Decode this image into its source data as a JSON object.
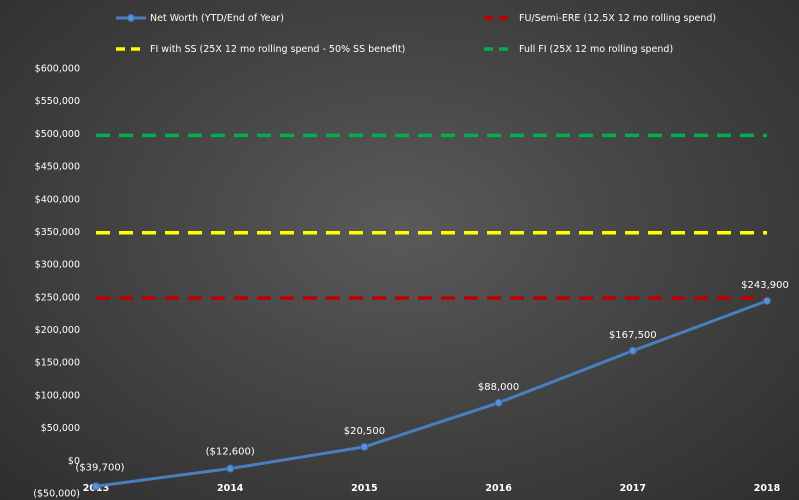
{
  "chart_data": {
    "type": "line",
    "title": "",
    "xlabel": "",
    "ylabel": "",
    "categories": [
      "2013",
      "2014",
      "2015",
      "2016",
      "2017",
      "2018"
    ],
    "ylim": [
      -50000,
      600000
    ],
    "yticks": [
      -50000,
      0,
      50000,
      100000,
      150000,
      200000,
      250000,
      300000,
      350000,
      400000,
      450000,
      500000,
      550000,
      600000
    ],
    "ytick_labels": [
      "($50,000)",
      "$0",
      "$50,000",
      "$100,000",
      "$150,000",
      "$200,000",
      "$250,000",
      "$300,000",
      "$350,000",
      "$400,000",
      "$450,000",
      "$500,000",
      "$550,000",
      "$600,000"
    ],
    "grid": false,
    "legend_position": "top",
    "series": [
      {
        "name": "Net Worth (YTD/End of Year)",
        "style": "line-markers",
        "color": "#4a7ec2",
        "values": [
          -39700,
          -12600,
          20500,
          88000,
          167500,
          243900
        ],
        "labels": [
          "($39,700)",
          "($12,600)",
          "$20,500",
          "$88,000",
          "$167,500",
          "$243,900"
        ]
      },
      {
        "name": "FU/Semi-ERE (12.5X 12 mo rolling spend)",
        "style": "dashed",
        "color": "#c00000",
        "values": [
          248000,
          248000,
          248000,
          248000,
          248000,
          248000
        ]
      },
      {
        "name": "FI with SS  (25X 12 mo rolling spend - 50% SS benefit)",
        "style": "dashed",
        "color": "#ffff00",
        "values": [
          348000,
          348000,
          348000,
          348000,
          348000,
          348000
        ]
      },
      {
        "name": "Full FI  (25X 12 mo rolling spend)",
        "style": "dashed",
        "color": "#00b050",
        "values": [
          497000,
          497000,
          497000,
          497000,
          497000,
          497000
        ]
      }
    ]
  }
}
